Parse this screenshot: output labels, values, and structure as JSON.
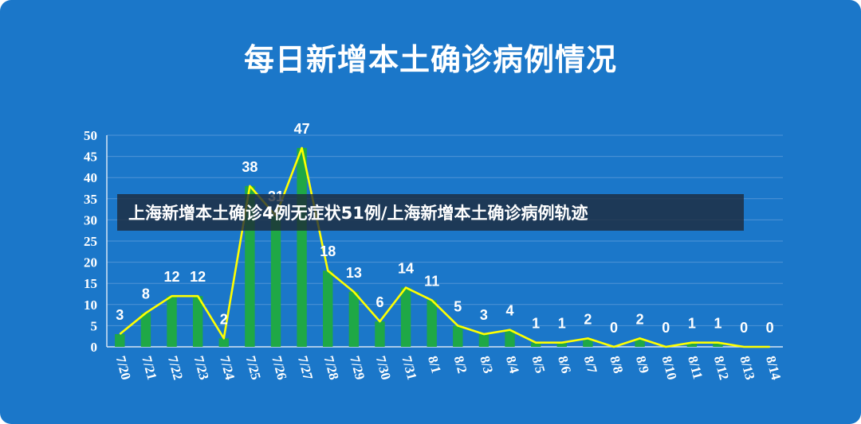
{
  "chart_data": {
    "type": "bar",
    "title": "每日新增本土确诊病例情况",
    "categories": [
      "7/20",
      "7/21",
      "7/22",
      "7/23",
      "7/24",
      "7/25",
      "7/26",
      "7/27",
      "7/28",
      "7/29",
      "7/30",
      "7/31",
      "8/1",
      "8/2",
      "8/3",
      "8/4",
      "8/5",
      "8/6",
      "8/7",
      "8/8",
      "8/9",
      "8/10",
      "8/11",
      "8/12",
      "8/13",
      "8/14"
    ],
    "values": [
      3,
      8,
      12,
      12,
      2,
      38,
      31,
      47,
      18,
      13,
      6,
      14,
      11,
      5,
      3,
      4,
      1,
      1,
      2,
      0,
      2,
      0,
      1,
      1,
      0,
      0
    ],
    "overlay_line": true,
    "ylim": [
      0,
      50
    ],
    "yticks": [
      0,
      5,
      10,
      15,
      20,
      25,
      30,
      35,
      40,
      45,
      50
    ],
    "grid": true,
    "xlabel": "",
    "ylabel": "",
    "colors": {
      "background": "#1b77c9",
      "bar": "#1fa846",
      "line": "#ffff00",
      "text": "#ffffff",
      "grid": "#4f94d6"
    }
  },
  "overlay": {
    "caption": "上海新增本土确诊4例无症状51例/上海新增本土确诊病例轨迹"
  }
}
